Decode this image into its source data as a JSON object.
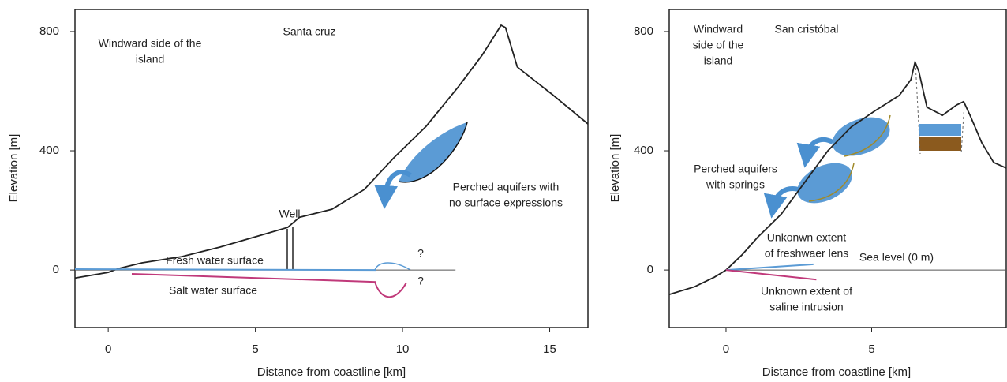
{
  "chart_data": [
    {
      "type": "line",
      "xlabel": "Distance from coastline [km]",
      "ylabel": "Elevation [m]",
      "xlim": [
        -1.13,
        16.3
      ],
      "ylim": [
        -193,
        874
      ],
      "xticks": [
        0,
        5,
        10,
        15
      ],
      "yticks": [
        0,
        400,
        800
      ],
      "series": [
        {
          "color": "#222222",
          "x": [
            -1.13,
            0,
            0.35,
            1.15,
            2.5,
            3.8,
            5.2,
            6.1,
            6.5,
            7.6,
            8.7,
            9.7,
            10.8,
            11.9,
            12.7,
            13.35,
            13.5,
            13.9,
            15.1,
            16.3
          ],
          "values": [
            -27,
            -8,
            5,
            24,
            45,
            77,
            117,
            143,
            177,
            204,
            270,
            376,
            482,
            615,
            720,
            821,
            813,
            681,
            588,
            490
          ]
        },
        {
          "color": "#555555",
          "x": [
            -1.13,
            11.8
          ],
          "values": [
            0,
            0
          ]
        },
        {
          "color": "#5b9bd5",
          "x": [
            -1.13,
            9.1
          ],
          "values": [
            3,
            0
          ]
        },
        {
          "color": "#c0397a",
          "x": [
            0.8,
            9.1
          ],
          "values": [
            -13,
            -40
          ]
        }
      ],
      "annotations": [
        {
          "lines": [
            "Windward side of the",
            "island"
          ]
        },
        {
          "lines": [
            "Santa cruz"
          ]
        },
        {
          "lines": [
            "Well"
          ]
        },
        {
          "lines": [
            "Perched aquifers with",
            "no surface expressions"
          ]
        },
        {
          "lines": [
            "Fresh water surface"
          ]
        },
        {
          "lines": [
            "Salt water surface"
          ]
        },
        {
          "lines": [
            "?"
          ]
        },
        {
          "lines": [
            "?"
          ]
        }
      ]
    },
    {
      "type": "line",
      "xlabel": "Distance from coastline [km]",
      "ylabel": "Elevation [m]",
      "xlim": [
        -1.95,
        9.62
      ],
      "ylim": [
        -193,
        874
      ],
      "xticks": [
        0,
        5
      ],
      "yticks": [
        0,
        400,
        800
      ],
      "series": [
        {
          "color": "#222222",
          "x": [
            -1.95,
            -1.08,
            -0.4,
            0,
            0.54,
            1.08,
            1.9,
            2.7,
            3.5,
            4.3,
            5.1,
            5.95,
            6.35,
            6.49,
            6.62,
            6.9,
            7.43,
            7.92,
            8.16,
            8.38,
            8.78,
            9.19,
            9.62
          ],
          "values": [
            -82,
            -56,
            -24,
            0,
            50,
            109,
            188,
            294,
            400,
            480,
            533,
            586,
            639,
            698,
            666,
            546,
            519,
            554,
            565,
            519,
            427,
            361,
            342
          ]
        },
        {
          "color": "#555555",
          "x": [
            0,
            9.62
          ],
          "values": [
            0,
            0
          ]
        },
        {
          "color": "#5b9bd5",
          "x": [
            0,
            3
          ],
          "values": [
            0,
            19
          ]
        },
        {
          "color": "#c0397a",
          "x": [
            0,
            3.1
          ],
          "values": [
            0,
            -32
          ]
        }
      ],
      "annotations": [
        {
          "lines": [
            "Windward",
            "side of the",
            "island"
          ]
        },
        {
          "lines": [
            "San cristóbal"
          ]
        },
        {
          "lines": [
            "Perched aquifers",
            "with springs"
          ]
        },
        {
          "lines": [
            "Unkonwn extent",
            "of freshwaer lens"
          ]
        },
        {
          "lines": [
            "Sea level (0 m)"
          ]
        },
        {
          "lines": [
            "Unknown extent of",
            "saline intrusion"
          ]
        }
      ]
    }
  ]
}
